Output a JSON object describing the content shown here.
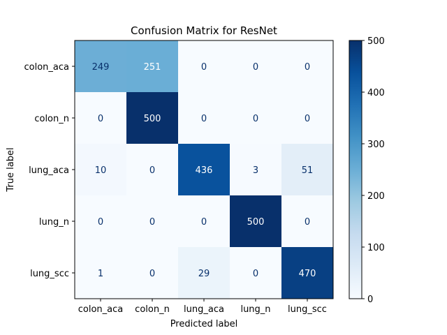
{
  "chart_data": {
    "type": "heatmap",
    "title": "Confusion Matrix for ResNet",
    "xlabel": "Predicted label",
    "ylabel": "True label",
    "x_categories": [
      "colon_aca",
      "colon_n",
      "lung_aca",
      "lung_n",
      "lung_scc"
    ],
    "y_categories": [
      "colon_aca",
      "colon_n",
      "lung_aca",
      "lung_n",
      "lung_scc"
    ],
    "values": [
      [
        249,
        251,
        0,
        0,
        0
      ],
      [
        0,
        500,
        0,
        0,
        0
      ],
      [
        10,
        0,
        436,
        3,
        51
      ],
      [
        0,
        0,
        0,
        500,
        0
      ],
      [
        1,
        0,
        29,
        0,
        470
      ]
    ],
    "colormap": "Blues",
    "color_range": [
      0,
      500
    ],
    "colorbar_ticks": [
      0,
      100,
      200,
      300,
      400,
      500
    ],
    "colors": {
      "low": "#f7fbff",
      "high": "#08306b",
      "text_dark": "#08306b",
      "text_light": "#ffffff"
    }
  }
}
